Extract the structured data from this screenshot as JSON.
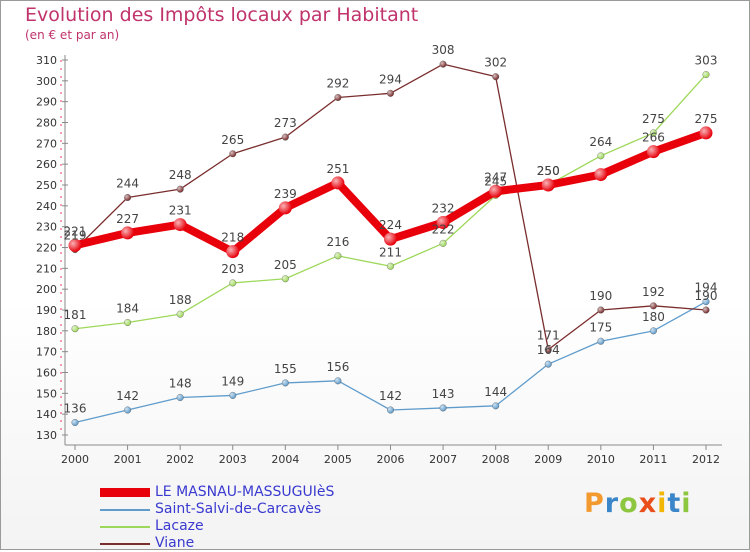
{
  "title": "Evolution des Impôts locaux par Habitant",
  "subtitle": "(en € et par an)",
  "brand": "Proxiti",
  "chart_data": {
    "type": "line",
    "x": [
      "2000",
      "2001",
      "2002",
      "2003",
      "2004",
      "2005",
      "2006",
      "2007",
      "2008",
      "2009",
      "2010",
      "2011",
      "2012"
    ],
    "ylim": [
      130,
      310
    ],
    "yticks": [
      130,
      140,
      150,
      160,
      170,
      180,
      190,
      200,
      210,
      220,
      230,
      240,
      250,
      260,
      270,
      280,
      290,
      300,
      310
    ],
    "grid": false,
    "legend_position": "bottom-left",
    "series": [
      {
        "name": "LE MASNAU-MASSUGUIèS",
        "color": "#e8000b",
        "values": [
          221,
          227,
          231,
          218,
          239,
          251,
          224,
          232,
          247,
          250,
          255,
          266,
          275
        ],
        "labels": [
          "221",
          "227",
          "231",
          "218",
          "239",
          "251",
          "224",
          "232",
          "247",
          "250",
          "",
          "266",
          "275"
        ]
      },
      {
        "name": "Saint-Salvi-de-Carcavès",
        "color": "#5f9ccc",
        "values": [
          136,
          142,
          148,
          149,
          155,
          156,
          142,
          143,
          144,
          164,
          175,
          180,
          194
        ],
        "labels": [
          "136",
          "142",
          "148",
          "149",
          "155",
          "156",
          "142",
          "143",
          "144",
          "164",
          "175",
          "180",
          "194"
        ]
      },
      {
        "name": "Lacaze",
        "color": "#9ed85a",
        "values": [
          181,
          184,
          188,
          203,
          205,
          216,
          211,
          222,
          245,
          250,
          264,
          275,
          303
        ],
        "labels": [
          "181",
          "184",
          "188",
          "203",
          "205",
          "216",
          "211",
          "222",
          "245",
          "250",
          "264",
          "275",
          "303"
        ]
      },
      {
        "name": "Viane",
        "color": "#7a2d2d",
        "values": [
          219,
          244,
          248,
          265,
          273,
          292,
          294,
          308,
          302,
          171,
          190,
          192,
          190
        ],
        "labels": [
          "219",
          "244",
          "248",
          "265",
          "273",
          "292",
          "294",
          "308",
          "302",
          "171",
          "190",
          "192",
          "190"
        ]
      }
    ]
  }
}
